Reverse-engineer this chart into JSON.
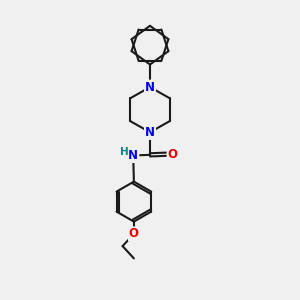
{
  "bg_color": "#f0f0f0",
  "bond_color": "#1a1a1a",
  "N_color": "#0000ee",
  "O_color": "#ee0000",
  "H_color": "#008888",
  "line_width": 1.5,
  "font_size_atom": 8.5,
  "fig_size": [
    3.0,
    3.0
  ],
  "dpi": 100,
  "xlim": [
    3.8,
    7.2
  ],
  "ylim": [
    0.5,
    9.8
  ]
}
